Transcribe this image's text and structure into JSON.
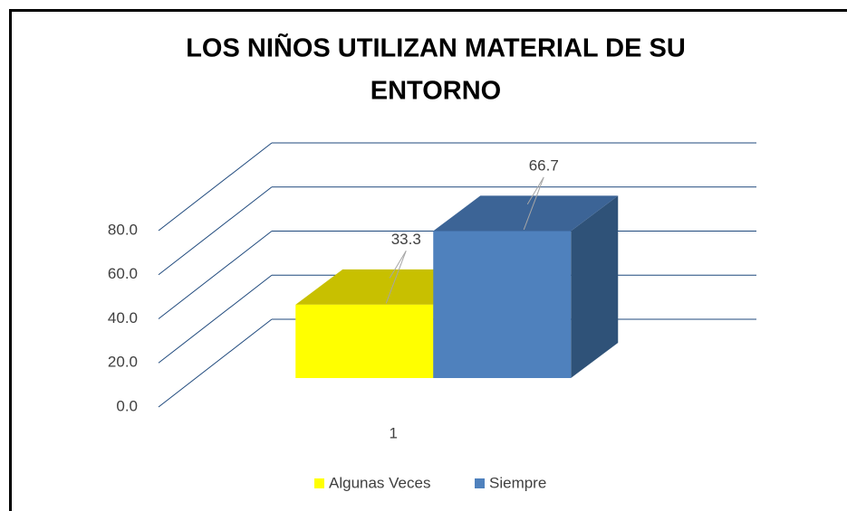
{
  "chart_data": {
    "type": "bar3d",
    "title": [
      "LOS NIÑOS UTILIZAN MATERIAL DE  SU",
      "ENTORNO"
    ],
    "categories": [
      "1"
    ],
    "series": [
      {
        "name": "Algunas Veces",
        "color": "#ffff00",
        "top_color": "#c8c000",
        "side_color": "#a8a000",
        "values": [
          33.3
        ]
      },
      {
        "name": "Siempre",
        "color": "#4f81bd",
        "top_color": "#3c6496",
        "side_color": "#2f5278",
        "values": [
          66.7
        ]
      }
    ],
    "ylim": [
      0,
      80
    ],
    "yticks": [
      {
        "value": 0,
        "label": "0.0"
      },
      {
        "value": 20,
        "label": "20.0"
      },
      {
        "value": 40,
        "label": "40.0"
      },
      {
        "value": 60,
        "label": "60.0"
      },
      {
        "value": 80,
        "label": "80.0"
      }
    ],
    "grid": true,
    "legend": "bottom"
  }
}
